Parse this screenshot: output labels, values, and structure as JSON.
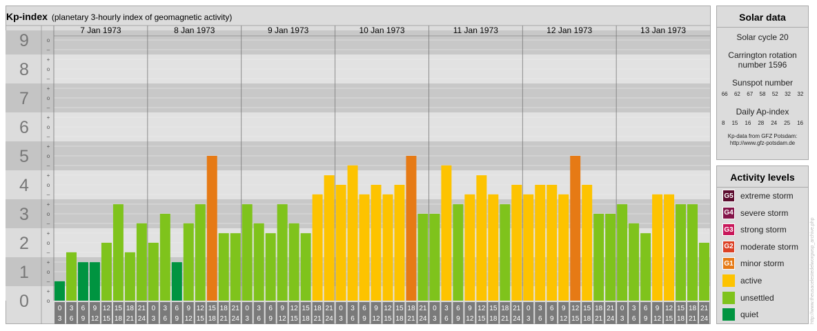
{
  "title": "Kp-index",
  "subtitle": "(planetary 3-hourly index of geomagnetic activity)",
  "chart_data": {
    "type": "bar",
    "days": [
      "7 Jan 1973",
      "8 Jan 1973",
      "9 Jan 1973",
      "10 Jan 1973",
      "11 Jan 1973",
      "12 Jan 1973",
      "13 Jan 1973"
    ],
    "interval_starts": [
      "0",
      "3",
      "6",
      "9",
      "12",
      "15",
      "18",
      "21"
    ],
    "interval_ends": [
      "3",
      "6",
      "9",
      "12",
      "15",
      "18",
      "21",
      "24"
    ],
    "y_labels": [
      "0",
      "1",
      "2",
      "3",
      "4",
      "5",
      "6",
      "7",
      "8",
      "9"
    ],
    "sub_labels": [
      "o",
      "+",
      "–"
    ],
    "ylim": [
      0,
      9.33
    ],
    "values": [
      0.67,
      1.67,
      1.33,
      1.33,
      2.0,
      3.33,
      1.67,
      2.67,
      2.0,
      3.0,
      1.33,
      2.67,
      3.33,
      5.0,
      2.33,
      2.33,
      3.33,
      2.67,
      2.33,
      3.33,
      2.67,
      2.33,
      3.67,
      4.33,
      4.0,
      4.67,
      3.67,
      4.0,
      3.67,
      4.0,
      5.0,
      3.0,
      3.0,
      4.67,
      3.33,
      3.67,
      4.33,
      3.67,
      3.33,
      4.0,
      3.67,
      4.0,
      4.0,
      3.67,
      5.0,
      4.0,
      3.0,
      3.0,
      3.33,
      2.67,
      2.33,
      3.67,
      3.67,
      3.33,
      3.33,
      2.0
    ],
    "colors": {
      "quiet": "#009440",
      "unsettled": "#7fc31c",
      "active": "#fdc300",
      "minor_storm": "#e67a15",
      "moderate_storm": "#dc4125",
      "strong_storm": "#c8175a",
      "severe_storm": "#84154a",
      "extreme_storm": "#5c0c2e"
    }
  },
  "solar": {
    "title": "Solar data",
    "cycle": "Solar cycle 20",
    "carrington_line1": "Carrington rotation",
    "carrington_line2": "number 1596",
    "sunspot_label": "Sunspot number",
    "sunspot_numbers": [
      "66",
      "62",
      "67",
      "58",
      "52",
      "32",
      "32"
    ],
    "ap_label": "Daily Ap-index",
    "ap_values": [
      "8",
      "15",
      "16",
      "28",
      "24",
      "25",
      "16"
    ],
    "note_line1": "Kp-data from GFZ Potsdam:",
    "note_line2": "http://www.gfz-potsdam.de"
  },
  "activity": {
    "title": "Activity levels",
    "levels": [
      {
        "code": "G5",
        "label": "extreme storm",
        "color": "#5c0c2e"
      },
      {
        "code": "G4",
        "label": "severe storm",
        "color": "#84154a"
      },
      {
        "code": "G3",
        "label": "strong storm",
        "color": "#c8175a"
      },
      {
        "code": "G2",
        "label": "moderate storm",
        "color": "#dc4125"
      },
      {
        "code": "G1",
        "label": "minor storm",
        "color": "#e67a15"
      },
      {
        "code": "",
        "label": "active",
        "color": "#fdc300"
      },
      {
        "code": "",
        "label": "unsettled",
        "color": "#7fc31c"
      },
      {
        "code": "",
        "label": "quiet",
        "color": "#009440"
      }
    ]
  },
  "watermark": "http://www.theusacelestedelworgwsp_archive.php"
}
